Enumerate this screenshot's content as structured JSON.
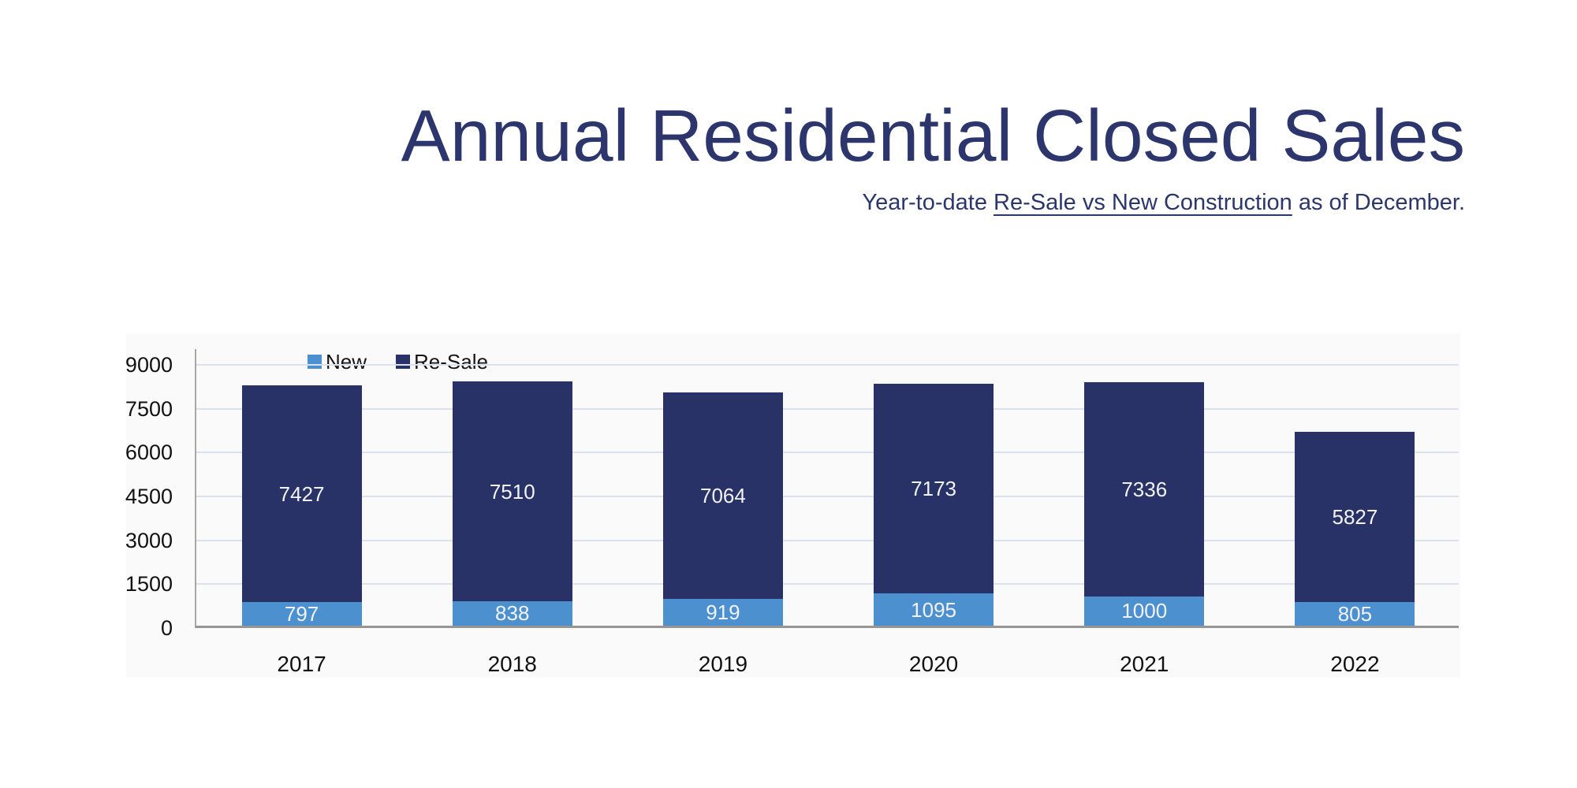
{
  "header": {
    "title": "Annual Residential Closed Sales",
    "subtitle_prefix": "Year-to-date ",
    "subtitle_underlined": "Re-Sale vs New Construction",
    "subtitle_suffix": " as of December."
  },
  "chart_data": {
    "type": "bar",
    "stacked": true,
    "title": "Annual Residential Closed Sales",
    "subtitle": "Year-to-date Re-Sale vs New Construction as of December.",
    "categories": [
      "2017",
      "2018",
      "2019",
      "2020",
      "2021",
      "2022"
    ],
    "series": [
      {
        "name": "New",
        "color": "#4c90d0",
        "values": [
          797,
          838,
          919,
          1095,
          1000,
          805
        ]
      },
      {
        "name": "Re-Sale",
        "color": "#293266",
        "values": [
          7427,
          7510,
          7064,
          7173,
          7336,
          5827
        ]
      }
    ],
    "totals": [
      8224,
      8348,
      7983,
      8268,
      8336,
      6632
    ],
    "ylim": [
      0,
      9000
    ],
    "yticks": [
      0,
      1500,
      3000,
      4500,
      6000,
      7500,
      9000
    ],
    "grid": true,
    "legend_position": "top-inside-left",
    "bar_labels": "inside-segment",
    "xlabel": "",
    "ylabel": ""
  },
  "colors": {
    "title_text": "#2c366d",
    "new_segment": "#4c90d0",
    "resale_segment": "#293266",
    "gridline": "#dce2ec",
    "axis_line": "#a6a6a6",
    "baseline": "#969696",
    "tick_text": "#121212",
    "bar_label_text": "#f2f3f6",
    "background": "#ffffff"
  }
}
